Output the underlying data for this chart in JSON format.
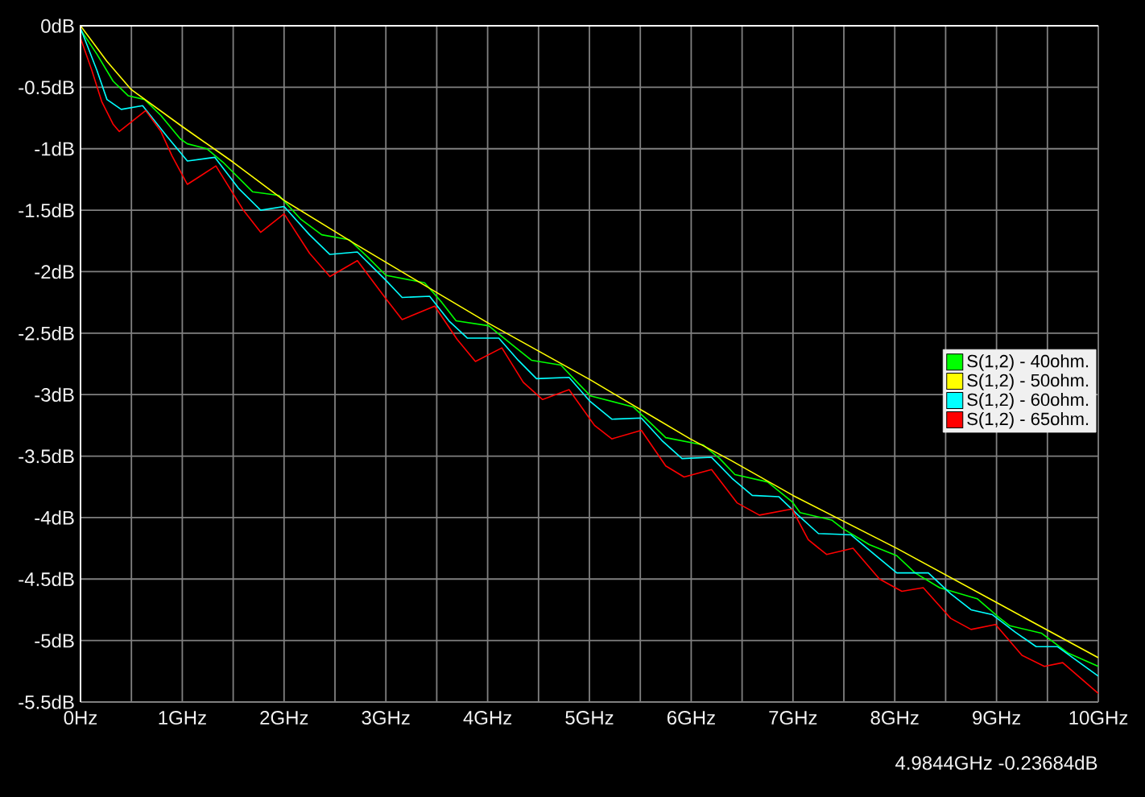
{
  "chart_data": {
    "type": "line",
    "xlim": [
      0,
      10
    ],
    "ylim": [
      -5.5,
      0
    ],
    "xticks": [
      {
        "value": 0,
        "label": "0Hz"
      },
      {
        "value": 0.5,
        "label": null
      },
      {
        "value": 1,
        "label": "1GHz"
      },
      {
        "value": 1.5,
        "label": null
      },
      {
        "value": 2,
        "label": "2GHz"
      },
      {
        "value": 2.5,
        "label": null
      },
      {
        "value": 3,
        "label": "3GHz"
      },
      {
        "value": 3.5,
        "label": null
      },
      {
        "value": 4,
        "label": "4GHz"
      },
      {
        "value": 4.5,
        "label": null
      },
      {
        "value": 5,
        "label": "5GHz"
      },
      {
        "value": 5.5,
        "label": null
      },
      {
        "value": 6,
        "label": "6GHz"
      },
      {
        "value": 6.5,
        "label": null
      },
      {
        "value": 7,
        "label": "7GHz"
      },
      {
        "value": 7.5,
        "label": null
      },
      {
        "value": 8,
        "label": "8GHz"
      },
      {
        "value": 8.5,
        "label": null
      },
      {
        "value": 9,
        "label": "9GHz"
      },
      {
        "value": 9.5,
        "label": null
      },
      {
        "value": 10,
        "label": "10GHz"
      }
    ],
    "yticks": [
      {
        "value": 0,
        "label": "0dB"
      },
      {
        "value": -0.5,
        "label": "-0.5dB"
      },
      {
        "value": -1,
        "label": "-1dB"
      },
      {
        "value": -1.5,
        "label": "-1.5dB"
      },
      {
        "value": -2,
        "label": "-2dB"
      },
      {
        "value": -2.5,
        "label": "-2.5dB"
      },
      {
        "value": -3,
        "label": "-3dB"
      },
      {
        "value": -3.5,
        "label": "-3.5dB"
      },
      {
        "value": -4,
        "label": "-4dB"
      },
      {
        "value": -4.5,
        "label": "-4.5dB"
      },
      {
        "value": -5,
        "label": "-5dB"
      },
      {
        "value": -5.5,
        "label": "-5.5dB"
      }
    ],
    "grid": true,
    "legend": "right",
    "marker": "none",
    "line_style": "solid",
    "annotations": [
      "4.9844GHz -0.23684dB"
    ],
    "series": [
      {
        "name": "S(1,2) - 40ohm.",
        "color": "#00ff00",
        "x": [
          0,
          0.16,
          0.32,
          0.47,
          0.63,
          0.79,
          0.98,
          1.05,
          1.24,
          1.4,
          1.69,
          1.95,
          2.16,
          2.37,
          2.64,
          2.82,
          3,
          3.38,
          3.55,
          3.69,
          4.01,
          4.22,
          4.43,
          4.72,
          4.88,
          5.01,
          5.43,
          5.6,
          5.75,
          6.12,
          6.28,
          6.43,
          6.75,
          6.99,
          7.07,
          7.38,
          7.49,
          7.75,
          8.02,
          8.2,
          8.44,
          8.81,
          9.02,
          9.13,
          9.44,
          9.7,
          10
        ],
        "values": [
          -0.03,
          -0.23,
          -0.45,
          -0.57,
          -0.6,
          -0.73,
          -0.92,
          -0.96,
          -1,
          -1.11,
          -1.35,
          -1.38,
          -1.57,
          -1.7,
          -1.74,
          -1.88,
          -2.03,
          -2.09,
          -2.25,
          -2.4,
          -2.44,
          -2.58,
          -2.72,
          -2.76,
          -2.9,
          -3.01,
          -3.1,
          -3.23,
          -3.35,
          -3.41,
          -3.52,
          -3.65,
          -3.71,
          -3.87,
          -3.96,
          -4.02,
          -4.09,
          -4.22,
          -4.31,
          -4.45,
          -4.57,
          -4.66,
          -4.81,
          -4.88,
          -4.94,
          -5.1,
          -5.21
        ]
      },
      {
        "name": "S(1,2) - 50ohm.",
        "color": "#ffff00",
        "x": [
          0,
          0.26,
          0.5,
          1,
          1.5,
          2,
          2.69,
          3.48,
          4.01,
          5.01,
          5.54,
          5.99,
          6.38,
          7,
          8.02,
          9.02,
          10
        ],
        "values": [
          0,
          -0.29,
          -0.52,
          -0.82,
          -1.11,
          -1.42,
          -1.77,
          -2.16,
          -2.42,
          -2.88,
          -3.14,
          -3.36,
          -3.53,
          -3.82,
          -4.25,
          -4.7,
          -5.14
        ]
      },
      {
        "name": "S(1,2) - 60ohm.",
        "color": "#00ffff",
        "x": [
          0,
          0.16,
          0.26,
          0.4,
          0.61,
          0.85,
          1.05,
          1.32,
          1.55,
          1.77,
          2,
          2.25,
          2.45,
          2.72,
          3,
          3.16,
          3.43,
          3.62,
          3.8,
          4.11,
          4.3,
          4.48,
          4.8,
          5,
          5.22,
          5.51,
          5.72,
          5.91,
          6.2,
          6.4,
          6.6,
          6.86,
          7.05,
          7.25,
          7.57,
          7.8,
          8.02,
          8.33,
          8.55,
          8.75,
          8.96,
          9.18,
          9.39,
          9.6,
          10
        ],
        "values": [
          -0.02,
          -0.36,
          -0.6,
          -0.68,
          -0.65,
          -0.9,
          -1.1,
          -1.07,
          -1.32,
          -1.5,
          -1.47,
          -1.7,
          -1.86,
          -1.84,
          -2.07,
          -2.21,
          -2.2,
          -2.4,
          -2.54,
          -2.54,
          -2.72,
          -2.87,
          -2.86,
          -3.05,
          -3.2,
          -3.19,
          -3.38,
          -3.52,
          -3.51,
          -3.68,
          -3.82,
          -3.83,
          -3.98,
          -4.13,
          -4.14,
          -4.3,
          -4.45,
          -4.45,
          -4.62,
          -4.75,
          -4.79,
          -4.93,
          -5.05,
          -5.05,
          -5.29
        ]
      },
      {
        "name": "S(1,2) - 65ohm.",
        "color": "#ff0000",
        "x": [
          0,
          0.11,
          0.21,
          0.32,
          0.38,
          0.64,
          0.79,
          0.9,
          1.05,
          1.33,
          1.6,
          1.77,
          2,
          2.25,
          2.45,
          2.72,
          3,
          3.16,
          3.48,
          3.7,
          3.88,
          4.14,
          4.35,
          4.54,
          4.8,
          5.05,
          5.22,
          5.51,
          5.75,
          5.93,
          6.2,
          6.45,
          6.67,
          6.99,
          7.15,
          7.33,
          7.59,
          7.85,
          8.07,
          8.28,
          8.55,
          8.75,
          8.99,
          9.25,
          9.47,
          9.65,
          10
        ],
        "values": [
          -0.1,
          -0.36,
          -0.62,
          -0.8,
          -0.86,
          -0.69,
          -0.86,
          -1.06,
          -1.29,
          -1.14,
          -1.5,
          -1.68,
          -1.53,
          -1.85,
          -2.04,
          -1.91,
          -2.22,
          -2.39,
          -2.28,
          -2.55,
          -2.73,
          -2.62,
          -2.9,
          -3.04,
          -2.96,
          -3.25,
          -3.36,
          -3.29,
          -3.58,
          -3.67,
          -3.61,
          -3.88,
          -3.98,
          -3.93,
          -4.18,
          -4.3,
          -4.25,
          -4.5,
          -4.6,
          -4.57,
          -4.82,
          -4.91,
          -4.87,
          -5.12,
          -5.21,
          -5.18,
          -5.43
        ]
      }
    ]
  }
}
